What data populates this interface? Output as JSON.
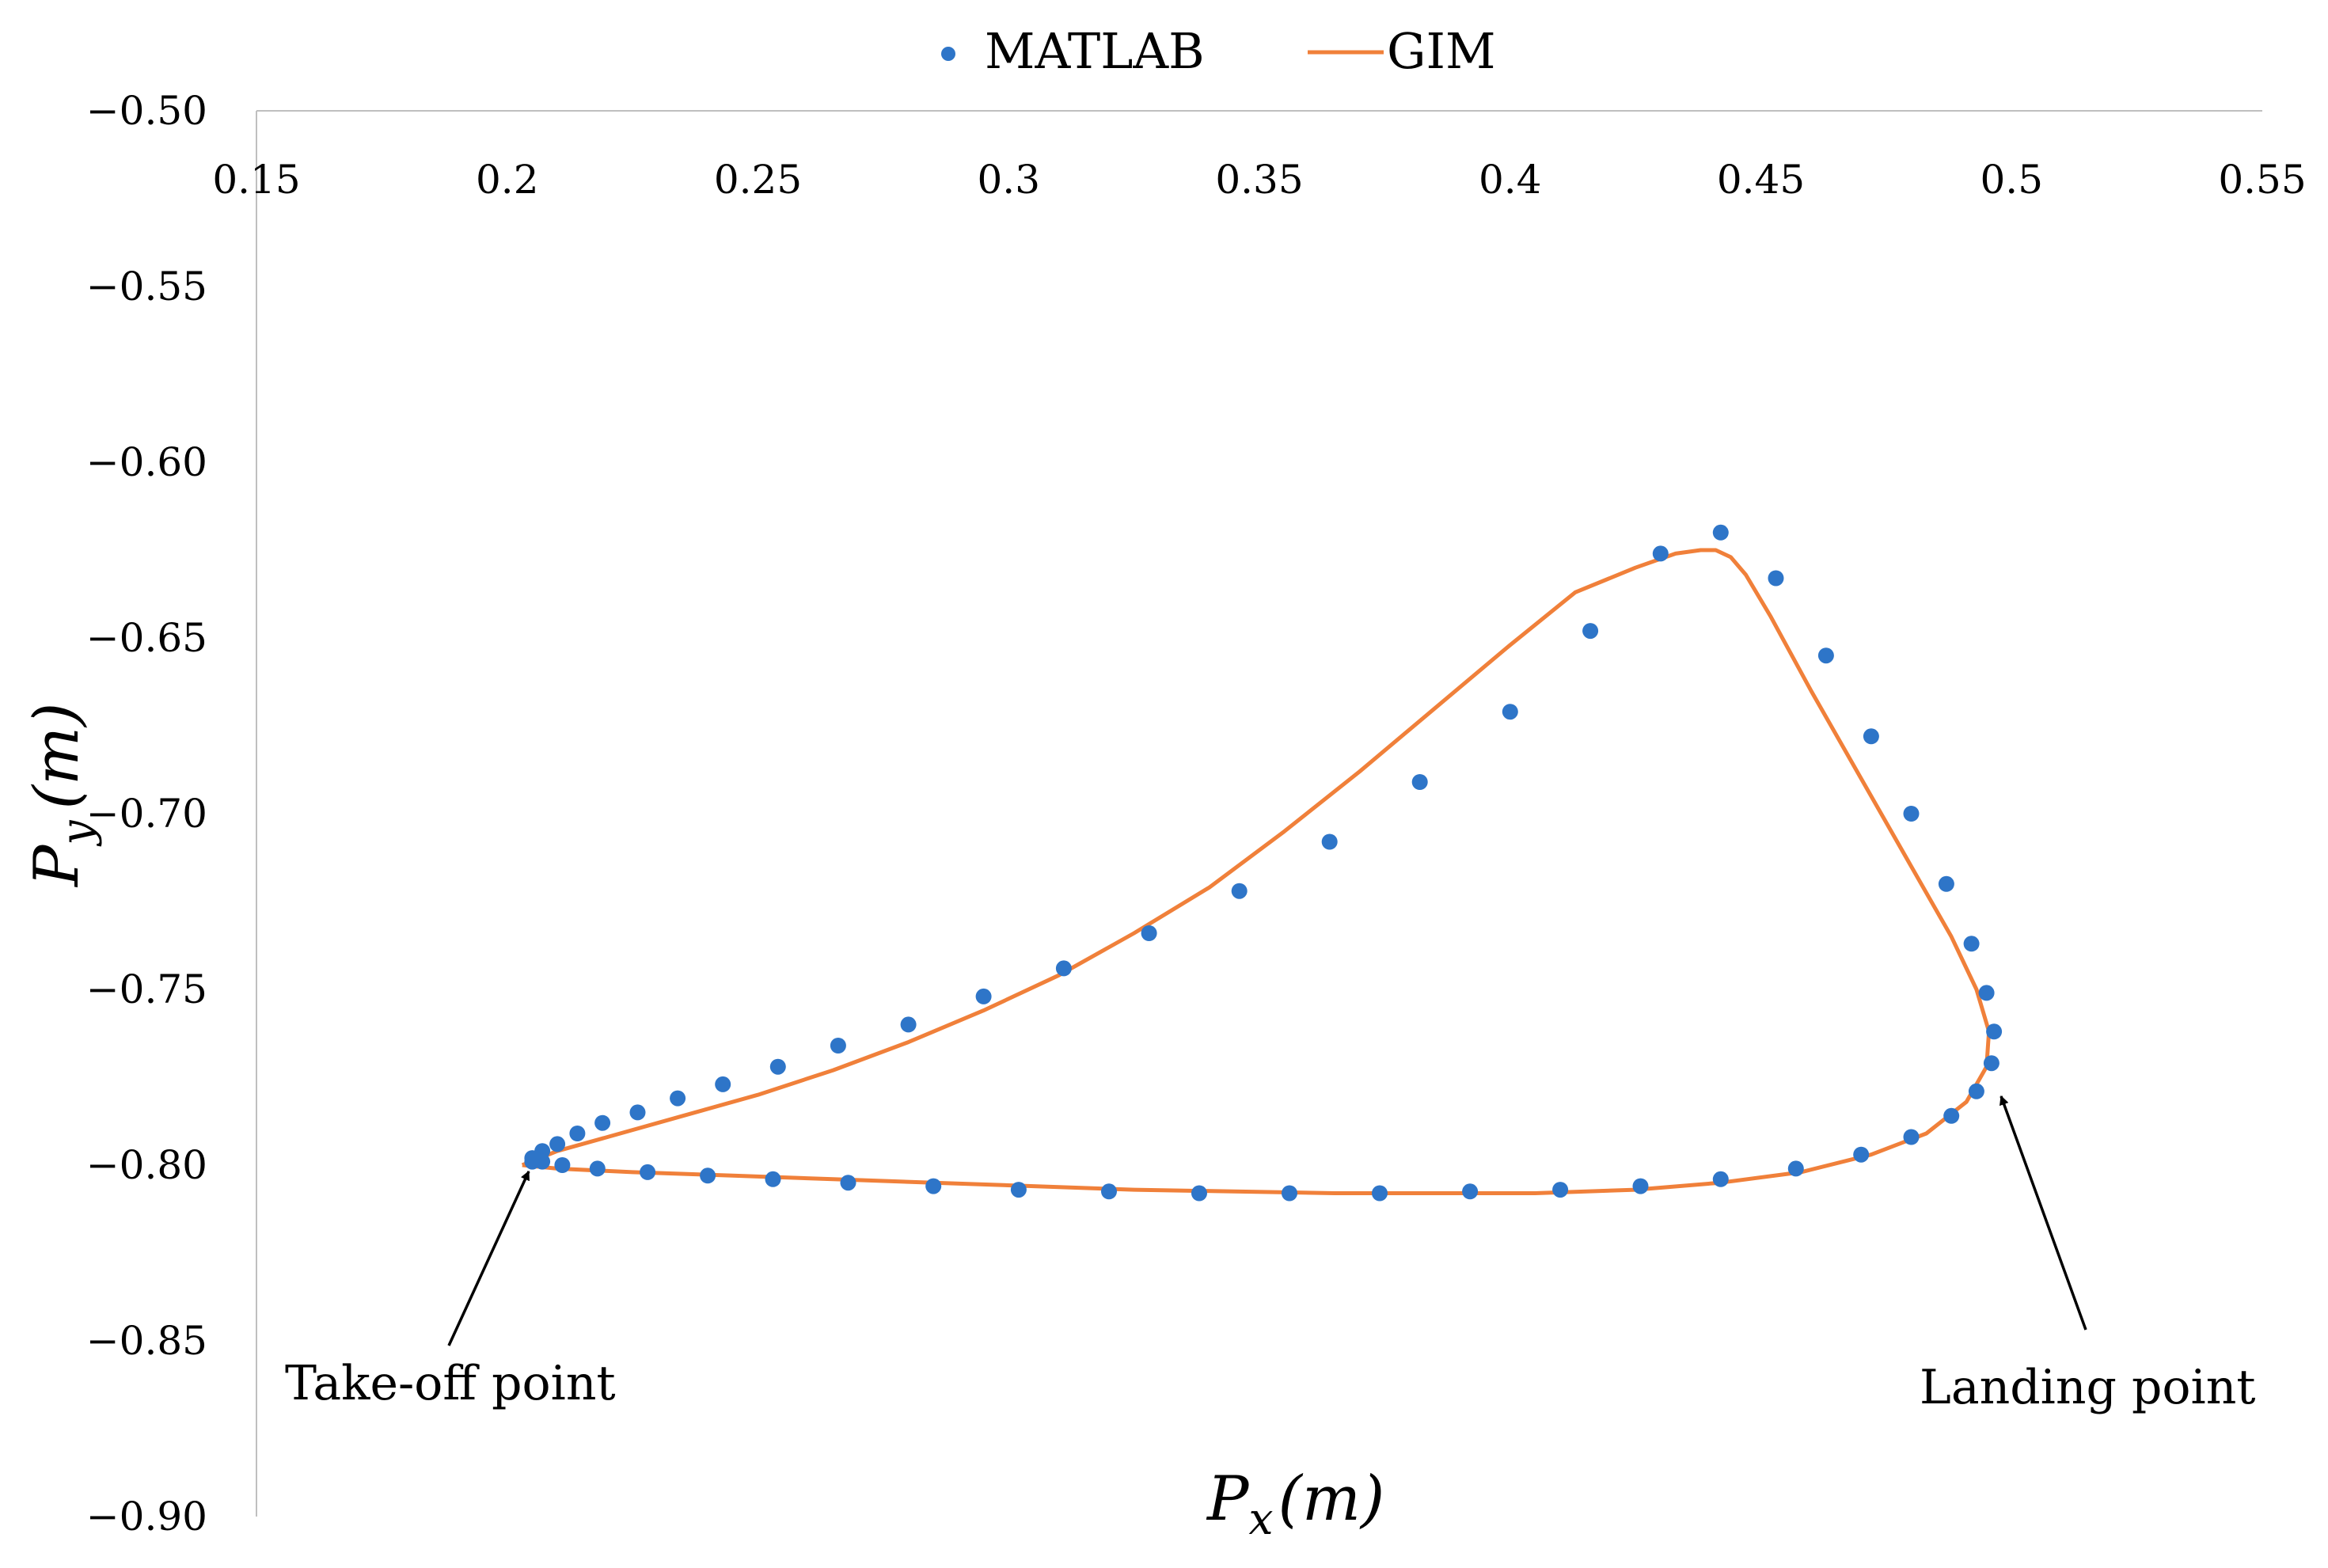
{
  "chart_data": {
    "type": "scatter",
    "title": "",
    "xlabel": "Px (m)",
    "ylabel": "Py (m)",
    "xlabel_main": "P",
    "xlabel_sub": "x",
    "xlabel_unit": "(m)",
    "ylabel_main": "P",
    "ylabel_sub": "y",
    "ylabel_unit": "(m)",
    "xlim": [
      0.15,
      0.55
    ],
    "ylim": [
      -0.9,
      -0.5
    ],
    "x_ticks": [
      0.15,
      0.2,
      0.25,
      0.3,
      0.35,
      0.4,
      0.45,
      0.5,
      0.55
    ],
    "x_tick_labels": [
      "0.15",
      "0.2",
      "0.25",
      "0.3",
      "0.35",
      "0.4",
      "0.45",
      "0.5",
      "0.55"
    ],
    "y_ticks": [
      -0.5,
      -0.55,
      -0.6,
      -0.65,
      -0.7,
      -0.75,
      -0.8,
      -0.85,
      -0.9
    ],
    "y_tick_labels": [
      "−0.50",
      "−0.55",
      "−0.60",
      "−0.65",
      "−0.70",
      "−0.75",
      "−0.80",
      "−0.85",
      "−0.90"
    ],
    "legend": {
      "position": "top-center",
      "entries": [
        "MATLAB",
        "GIM"
      ]
    },
    "series": [
      {
        "name": "MATLAB",
        "type": "scatter",
        "color": "#2E75C8",
        "x": [
          0.205,
          0.207,
          0.21,
          0.214,
          0.219,
          0.226,
          0.234,
          0.243,
          0.254,
          0.266,
          0.28,
          0.295,
          0.311,
          0.328,
          0.346,
          0.364,
          0.382,
          0.4,
          0.416,
          0.43,
          0.442,
          0.453,
          0.463,
          0.472,
          0.48,
          0.487,
          0.492,
          0.495,
          0.4965,
          0.496,
          0.493,
          0.488,
          0.48,
          0.47,
          0.457,
          0.442,
          0.426,
          0.41,
          0.392,
          0.374,
          0.356,
          0.338,
          0.32,
          0.302,
          0.285,
          0.268,
          0.253,
          0.24,
          0.228,
          0.218,
          0.211,
          0.207,
          0.205
        ],
        "y": [
          -0.799,
          -0.796,
          -0.794,
          -0.791,
          -0.788,
          -0.785,
          -0.781,
          -0.777,
          -0.772,
          -0.766,
          -0.76,
          -0.752,
          -0.744,
          -0.734,
          -0.722,
          -0.708,
          -0.691,
          -0.671,
          -0.648,
          -0.626,
          -0.62,
          -0.633,
          -0.655,
          -0.678,
          -0.7,
          -0.72,
          -0.737,
          -0.751,
          -0.762,
          -0.771,
          -0.779,
          -0.786,
          -0.792,
          -0.797,
          -0.801,
          -0.804,
          -0.806,
          -0.807,
          -0.8075,
          -0.808,
          -0.808,
          -0.808,
          -0.8075,
          -0.807,
          -0.806,
          -0.805,
          -0.804,
          -0.803,
          -0.802,
          -0.801,
          -0.8,
          -0.799,
          -0.798
        ]
      },
      {
        "name": "GIM",
        "type": "line",
        "color": "#F0803A",
        "x": [
          0.203,
          0.21,
          0.22,
          0.235,
          0.25,
          0.265,
          0.28,
          0.295,
          0.31,
          0.325,
          0.34,
          0.355,
          0.37,
          0.385,
          0.4,
          0.413,
          0.425,
          0.433,
          0.438,
          0.441,
          0.444,
          0.447,
          0.452,
          0.46,
          0.47,
          0.48,
          0.488,
          0.493,
          0.4955,
          0.495,
          0.491,
          0.483,
          0.472,
          0.458,
          0.442,
          0.425,
          0.405,
          0.385,
          0.365,
          0.345,
          0.325,
          0.305,
          0.285,
          0.265,
          0.245,
          0.225,
          0.21,
          0.203
        ],
        "y": [
          -0.8,
          -0.796,
          -0.792,
          -0.786,
          -0.78,
          -0.773,
          -0.765,
          -0.756,
          -0.746,
          -0.734,
          -0.721,
          -0.705,
          -0.688,
          -0.67,
          -0.652,
          -0.637,
          -0.63,
          -0.626,
          -0.625,
          -0.625,
          -0.627,
          -0.632,
          -0.644,
          -0.665,
          -0.69,
          -0.715,
          -0.735,
          -0.75,
          -0.762,
          -0.772,
          -0.782,
          -0.791,
          -0.797,
          -0.802,
          -0.805,
          -0.807,
          -0.808,
          -0.808,
          -0.808,
          -0.8075,
          -0.807,
          -0.806,
          -0.805,
          -0.804,
          -0.803,
          -0.802,
          -0.801,
          -0.8
        ]
      }
    ],
    "annotations": [
      {
        "text": "Take-off point",
        "target_x": 0.205,
        "target_y": -0.802
      },
      {
        "text": "Landing point",
        "target_x": 0.495,
        "target_y": -0.777
      }
    ]
  }
}
